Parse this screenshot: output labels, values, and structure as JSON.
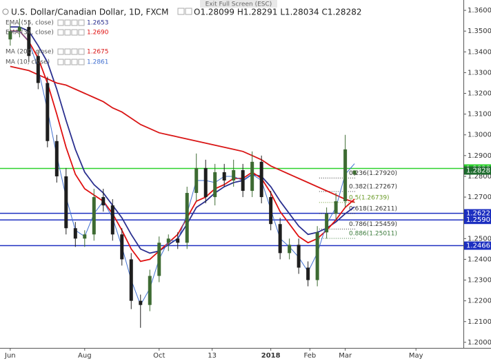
{
  "chart_data": {
    "type": "candlestick",
    "title": "U.S. Dollar/Canadian Dollar, 1D, FXCM",
    "ohlc_summary": "O1.28099 H1.28291 L1.28034 C1.28282",
    "exit_text": "Exit Full Screen (ESC)",
    "up_color": "#3d6b32",
    "down_color": "#1e1e1e",
    "x": [
      0,
      5,
      10,
      15,
      20,
      25,
      30,
      35,
      40,
      45,
      50,
      55,
      60,
      65,
      70,
      75,
      80,
      85,
      90,
      95,
      100,
      105,
      110,
      115,
      120,
      125,
      130,
      135,
      140,
      145,
      150,
      155,
      160,
      165,
      170,
      175,
      180,
      185
    ],
    "open": [
      1.346,
      1.35,
      1.352,
      1.338,
      1.325,
      1.297,
      1.28,
      1.255,
      1.25,
      1.252,
      1.27,
      1.266,
      1.252,
      1.24,
      1.22,
      1.218,
      1.232,
      1.248,
      1.25,
      1.248,
      1.272,
      1.284,
      1.27,
      1.282,
      1.278,
      1.283,
      1.273,
      1.287,
      1.27,
      1.257,
      1.243,
      1.247,
      1.236,
      1.23,
      1.253,
      1.262,
      1.268,
      1.28099
    ],
    "high": [
      1.354,
      1.356,
      1.355,
      1.341,
      1.328,
      1.3,
      1.284,
      1.258,
      1.254,
      1.274,
      1.274,
      1.269,
      1.255,
      1.243,
      1.223,
      1.235,
      1.251,
      1.252,
      1.253,
      1.275,
      1.291,
      1.288,
      1.286,
      1.286,
      1.288,
      1.286,
      1.292,
      1.29,
      1.273,
      1.26,
      1.25,
      1.25,
      1.239,
      1.256,
      1.265,
      1.272,
      1.3,
      1.28291
    ],
    "low": [
      1.343,
      1.347,
      1.335,
      1.322,
      1.294,
      1.277,
      1.252,
      1.246,
      1.246,
      1.249,
      1.263,
      1.249,
      1.237,
      1.216,
      1.207,
      1.215,
      1.229,
      1.244,
      1.245,
      1.245,
      1.268,
      1.267,
      1.266,
      1.275,
      1.275,
      1.27,
      1.27,
      1.267,
      1.254,
      1.24,
      1.24,
      1.233,
      1.227,
      1.227,
      1.25,
      1.259,
      1.265,
      1.28034
    ],
    "close": [
      1.35,
      1.352,
      1.338,
      1.325,
      1.297,
      1.28,
      1.255,
      1.25,
      1.252,
      1.27,
      1.266,
      1.252,
      1.24,
      1.22,
      1.218,
      1.232,
      1.248,
      1.25,
      1.248,
      1.272,
      1.284,
      1.27,
      1.282,
      1.278,
      1.283,
      1.273,
      1.287,
      1.27,
      1.257,
      1.243,
      1.247,
      1.236,
      1.23,
      1.253,
      1.262,
      1.268,
      1.293,
      1.28282
    ],
    "series": [
      {
        "name": "EMA (55, close)",
        "color": "#2a2f8f",
        "width": 1.8,
        "legend_value": 1.2653,
        "values": [
          1.352,
          1.352,
          1.35,
          1.343,
          1.335,
          1.322,
          1.307,
          1.293,
          1.282,
          1.276,
          1.272,
          1.266,
          1.26,
          1.252,
          1.245,
          1.243,
          1.244,
          1.247,
          1.25,
          1.257,
          1.265,
          1.268,
          1.272,
          1.275,
          1.277,
          1.278,
          1.281,
          1.28,
          1.275,
          1.268,
          1.262,
          1.256,
          1.252,
          1.253,
          1.255,
          1.258,
          1.262,
          1.2653
        ]
      },
      {
        "name": "EMA (34, close)",
        "color": "#e01010",
        "width": 1.8,
        "legend_value": {
          "value": 1.269,
          "label": "1.2690"
        },
        "values": [
          1.35,
          1.35,
          1.345,
          1.337,
          1.325,
          1.31,
          1.294,
          1.281,
          1.274,
          1.271,
          1.268,
          1.262,
          1.254,
          1.245,
          1.239,
          1.24,
          1.244,
          1.248,
          1.252,
          1.26,
          1.268,
          1.27,
          1.274,
          1.276,
          1.279,
          1.279,
          1.282,
          1.279,
          1.272,
          1.263,
          1.257,
          1.251,
          1.248,
          1.25,
          1.254,
          1.259,
          1.265,
          1.269
        ]
      },
      {
        "name": "MA (200, close)",
        "color": "#d91515",
        "width": 1.8,
        "legend_value": 1.2675,
        "values": [
          1.333,
          1.332,
          1.331,
          1.329,
          1.327,
          1.325,
          1.324,
          1.322,
          1.32,
          1.318,
          1.316,
          1.313,
          1.311,
          1.308,
          1.305,
          1.303,
          1.301,
          1.3,
          1.299,
          1.298,
          1.297,
          1.296,
          1.295,
          1.294,
          1.293,
          1.292,
          1.29,
          1.288,
          1.285,
          1.283,
          1.281,
          1.279,
          1.277,
          1.275,
          1.273,
          1.271,
          1.269,
          1.2675
        ]
      },
      {
        "name": "MA (10, close)",
        "color": "#3f6fd0",
        "width": 1,
        "legend_value": 1.2861,
        "values": [
          1.35,
          1.35,
          1.345,
          1.332,
          1.312,
          1.29,
          1.27,
          1.254,
          1.251,
          1.262,
          1.268,
          1.26,
          1.246,
          1.23,
          1.218,
          1.226,
          1.24,
          1.249,
          1.249,
          1.262,
          1.278,
          1.278,
          1.277,
          1.28,
          1.28,
          1.278,
          1.281,
          1.278,
          1.264,
          1.25,
          1.246,
          1.241,
          1.234,
          1.243,
          1.257,
          1.265,
          1.281,
          1.2861
        ]
      }
    ],
    "hlines": [
      {
        "value": 1.2838,
        "color": "#2bd12b",
        "line": true
      },
      {
        "value": 1.2828,
        "color": "#1e6b2e",
        "line": false
      },
      {
        "value": 1.2622,
        "color": "#1c2fc0",
        "line": true
      },
      {
        "value": 1.259,
        "label": "1.2590",
        "color": "#1c2fc0",
        "line": true
      },
      {
        "value": 1.2466,
        "color": "#1c2fc0",
        "line": true
      }
    ],
    "fib_levels": [
      {
        "value": 1.2792,
        "label": "0.236(1.27920)",
        "color": "#333333"
      },
      {
        "value": 1.27267,
        "label": "0.382(1.27267)",
        "color": "#333333"
      },
      {
        "value": 1.26739,
        "label": "0.5(1.26739)",
        "color": "#6b9b28"
      },
      {
        "value": 1.26211,
        "label": "0.618(1.26211)",
        "color": "#333333"
      },
      {
        "value": 1.25459,
        "label": "0.786(1.25459)",
        "color": "#333333"
      },
      {
        "value": 1.25011,
        "label": "0.886(1.25011)",
        "color": "#3a7a3a"
      }
    ],
    "xlim": [
      -5.5,
      243.5
    ],
    "xticks": [
      {
        "value": 0,
        "label": "Jun"
      },
      {
        "value": 40,
        "label": "Aug"
      },
      {
        "value": 80,
        "label": "Oct"
      },
      {
        "value": 108.5,
        "label": "13"
      },
      {
        "value": 140,
        "label": "2018"
      },
      {
        "value": 161,
        "label": "Feb"
      },
      {
        "value": 180,
        "label": "Mar"
      },
      {
        "value": 218,
        "label": "May"
      }
    ],
    "ylim": [
      1.1973,
      1.365
    ],
    "yticks": [
      {
        "value": 1.2,
        "label": "1.2000"
      },
      {
        "value": 1.21,
        "label": "1.2100"
      },
      {
        "value": 1.22,
        "label": "1.2200"
      },
      {
        "value": 1.23,
        "label": "1.2300"
      },
      {
        "value": 1.24,
        "label": "1.2400"
      },
      {
        "value": 1.25,
        "label": "1.2500"
      },
      {
        "value": 1.26,
        "label": "1.2600"
      },
      {
        "value": 1.27,
        "label": "1.2700"
      },
      {
        "value": 1.28,
        "label": "1.2800"
      },
      {
        "value": 1.29,
        "label": "1.2900"
      },
      {
        "value": 1.3,
        "label": "1.3000"
      },
      {
        "value": 1.31,
        "label": "1.3100"
      },
      {
        "value": 1.32,
        "label": "1.3200"
      },
      {
        "value": 1.33,
        "label": "1.3300"
      },
      {
        "value": 1.34,
        "label": "1.3400"
      },
      {
        "value": 1.35,
        "label": "1.3500"
      },
      {
        "value": 1.36,
        "label": "1.3600"
      }
    ]
  }
}
